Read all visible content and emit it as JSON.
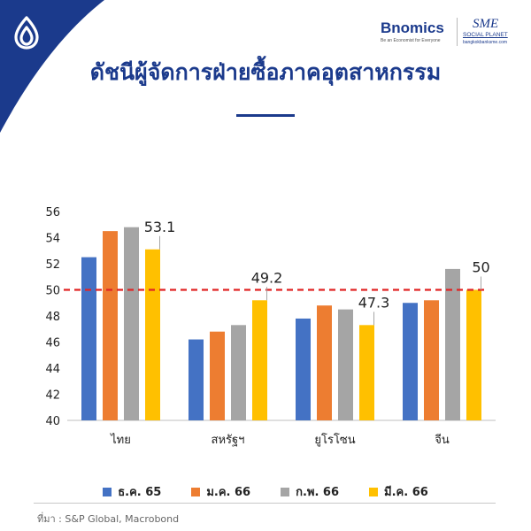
{
  "title": "ดัชนีผู้จัดการฝ่ายซื้อภาคอุตสาหกรรม",
  "brand": {
    "bnomics_name": "Bnomics",
    "bnomics_tagline": "Be an Economist for Everyone",
    "sme_name": "SME",
    "sme_subtitle": "SOCIAL PLANET",
    "sme_url": "bangkokbanksme.com"
  },
  "source": "ที่มา : S&P Global, Macrobond",
  "colors": {
    "title": "#1b3a8c",
    "corner_blue": "#1b3a8c",
    "reference_line": "#e02424",
    "series": [
      "#4472c4",
      "#ed7d31",
      "#a5a5a5",
      "#ffc000"
    ]
  },
  "icons": {
    "logo": "lotus-leaf-icon"
  },
  "chart_data": {
    "type": "bar",
    "categories": [
      "ไทย",
      "สหรัฐฯ",
      "ยูโรโซน",
      "จีน"
    ],
    "series": [
      {
        "name": "ธ.ค. 65",
        "values": [
          52.5,
          46.2,
          47.8,
          49.0
        ]
      },
      {
        "name": "ม.ค. 66",
        "values": [
          54.5,
          46.8,
          48.8,
          49.2
        ]
      },
      {
        "name": "ก.พ. 66",
        "values": [
          54.8,
          47.3,
          48.5,
          51.6
        ]
      },
      {
        "name": "มี.ค. 66",
        "values": [
          53.1,
          49.2,
          47.3,
          50.0
        ]
      }
    ],
    "ylim": [
      40,
      56
    ],
    "yticks": [
      40,
      42,
      44,
      46,
      48,
      50,
      52,
      54,
      56
    ],
    "reference_line": 50,
    "data_labels": [
      {
        "category": "ไทย",
        "series": "มี.ค. 66",
        "text": "53.1"
      },
      {
        "category": "สหรัฐฯ",
        "series": "มี.ค. 66",
        "text": "49.2"
      },
      {
        "category": "ยูโรโซน",
        "series": "มี.ค. 66",
        "text": "47.3"
      },
      {
        "category": "จีน",
        "series": "มี.ค. 66",
        "text": "50"
      }
    ],
    "grid": false,
    "legend": "bottom"
  }
}
